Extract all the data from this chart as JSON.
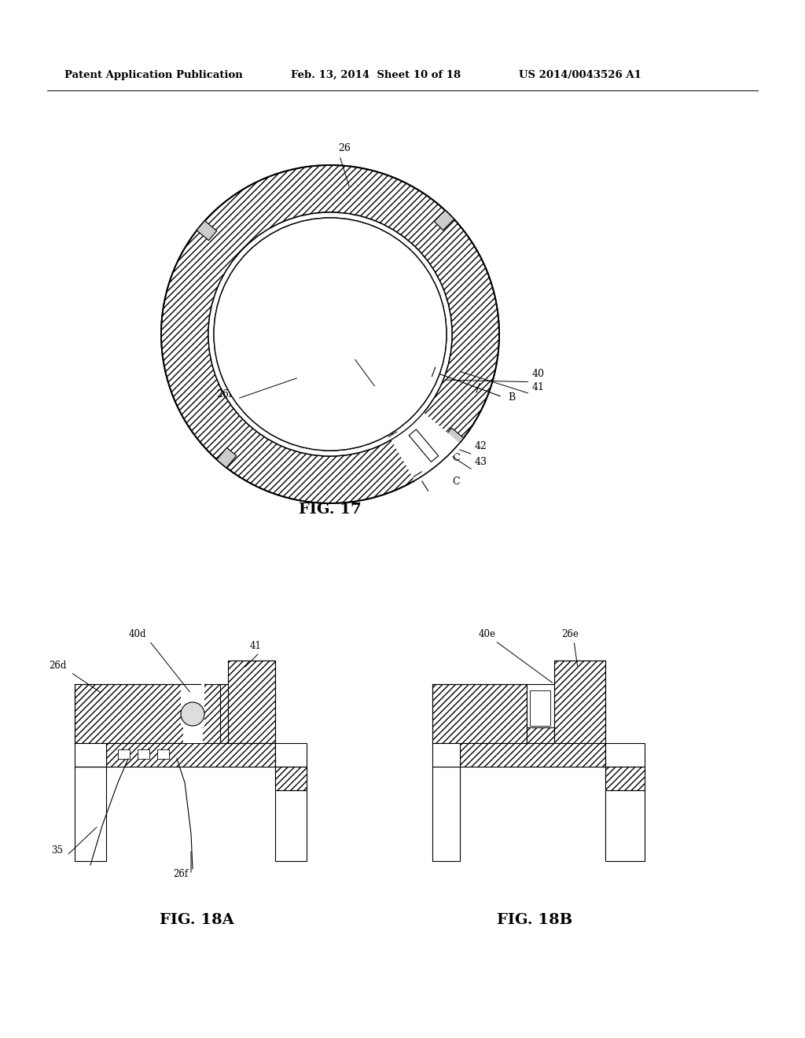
{
  "background_color": "#ffffff",
  "header_left": "Patent Application Publication",
  "header_center": "Feb. 13, 2014  Sheet 10 of 18",
  "header_right": "US 2014/0043526 A1",
  "fig17_caption": "FIG. 17",
  "fig18a_caption": "FIG. 18A",
  "fig18b_caption": "FIG. 18B"
}
